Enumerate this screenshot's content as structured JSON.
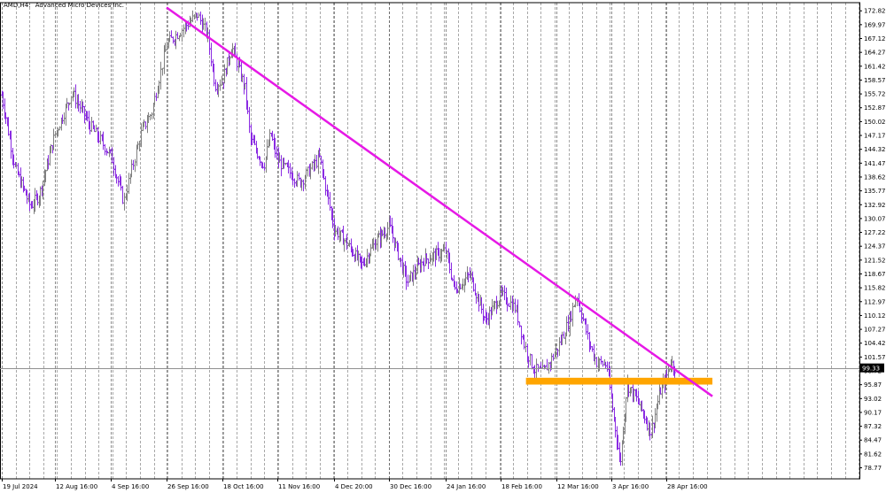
{
  "header": {
    "symbol": "AMD,H4:",
    "name": "Advanced Micro Devices Inc."
  },
  "colors": {
    "bull_candle": "#808080",
    "bear_candle": "#8a2be2",
    "trendline": "#e619e6",
    "support_zone": "#ffa500",
    "price_line": "#909090",
    "current_price_bg": "#000000"
  },
  "chart_data": {
    "type": "candlestick",
    "symbol": "AMD",
    "timeframe": "H4",
    "title": "Advanced Micro Devices Inc.",
    "y_range": [
      76.5,
      174.5
    ],
    "y_ticks": [
      "172.82",
      "169.97",
      "167.12",
      "164.27",
      "161.42",
      "158.57",
      "155.72",
      "152.87",
      "150.02",
      "147.17",
      "144.32",
      "141.47",
      "138.62",
      "135.77",
      "132.92",
      "130.07",
      "127.22",
      "124.37",
      "121.52",
      "118.67",
      "115.82",
      "112.97",
      "110.12",
      "107.27",
      "104.42",
      "101.57",
      "98.72",
      "95.87",
      "93.02",
      "90.17",
      "87.32",
      "84.47",
      "81.62",
      "78.77"
    ],
    "x_labels": [
      "19 Jul 2024",
      "12 Aug 16:00",
      "4 Sep 16:00",
      "26 Sep 16:00",
      "18 Oct 16:00",
      "11 Nov 16:00",
      "4 Dec 20:00",
      "30 Dec 16:00",
      "24 Jan 16:00",
      "18 Feb 16:00",
      "12 Mar 16:00",
      "3 Apr 16:00",
      "28 Apr 16:00"
    ],
    "current_price": "99.33",
    "price_path": [
      [
        "19 Jul 2024",
        155.5
      ],
      [
        "25 Jul 2024",
        140.5
      ],
      [
        "1 Aug 2024",
        132.5
      ],
      [
        "5 Aug 2024",
        135.0
      ],
      [
        "12 Aug 2024",
        147.5
      ],
      [
        "19 Aug 2024",
        156.0
      ],
      [
        "26 Aug 2024",
        149.5
      ],
      [
        "4 Sep 2024",
        143.0
      ],
      [
        "9 Sep 2024",
        133.5
      ],
      [
        "16 Sep 2024",
        148.0
      ],
      [
        "20 Sep 2024",
        152.0
      ],
      [
        "26 Sep 2024",
        166.0
      ],
      [
        "8 Oct 2024",
        172.0
      ],
      [
        "12 Oct 2024",
        168.0
      ],
      [
        "15 Oct 2024",
        157.5
      ],
      [
        "18 Oct 2024",
        158.5
      ],
      [
        "22 Oct 2024",
        165.5
      ],
      [
        "28 Oct 2024",
        156.5
      ],
      [
        "30 Oct 2024",
        146.5
      ],
      [
        "5 Nov 2024",
        141.0
      ],
      [
        "8 Nov 2024",
        147.5
      ],
      [
        "11 Nov 2024",
        142.0
      ],
      [
        "20 Nov 2024",
        137.5
      ],
      [
        "28 Nov 2024",
        142.5
      ],
      [
        "4 Dec 2024",
        128.0
      ],
      [
        "10 Dec 2024",
        125.0
      ],
      [
        "17 Dec 2024",
        120.5
      ],
      [
        "24 Dec 2024",
        125.5
      ],
      [
        "30 Dec 2024",
        128.5
      ],
      [
        "7 Jan 2025",
        117.0
      ],
      [
        "14 Jan 2025",
        121.5
      ],
      [
        "24 Jan 2025",
        123.5
      ],
      [
        "28 Jan 2025",
        115.5
      ],
      [
        "4 Feb 2025",
        118.5
      ],
      [
        "11 Feb 2025",
        109.0
      ],
      [
        "18 Feb 2025",
        114.5
      ],
      [
        "24 Feb 2025",
        111.5
      ],
      [
        "27 Feb 2025",
        104.5
      ],
      [
        "3 Mar 2025",
        99.0
      ],
      [
        "7 Mar 2025",
        98.5
      ],
      [
        "12 Mar 2025",
        103.0
      ],
      [
        "17 Mar 2025",
        109.0
      ],
      [
        "20 Mar 2025",
        114.5
      ],
      [
        "25 Mar 2025",
        104.5
      ],
      [
        "28 Mar 2025",
        100.5
      ],
      [
        "1 Apr 2025",
        100.0
      ],
      [
        "3 Apr 2025",
        93.0
      ],
      [
        "7 Apr 2025",
        79.5
      ],
      [
        "10 Apr 2025",
        96.0
      ],
      [
        "15 Apr 2025",
        92.5
      ],
      [
        "21 Apr 2025",
        86.0
      ],
      [
        "25 Apr 2025",
        94.5
      ],
      [
        "28 Apr 2025",
        97.5
      ],
      [
        "30 Apr 2025",
        100.5
      ],
      [
        "2 May 2025",
        99.33
      ]
    ],
    "trendline": {
      "from": [
        "26 Sep 2024",
        173.5
      ],
      "to": [
        "19 May 2025",
        93.5
      ],
      "color": "#e619e6"
    },
    "support_zone": {
      "from": "28 Feb 2025",
      "to": "19 May 2025",
      "low": 95.9,
      "high": 97.3,
      "color": "#ffa500"
    },
    "grid": "vertical dashed",
    "legend": "none"
  }
}
